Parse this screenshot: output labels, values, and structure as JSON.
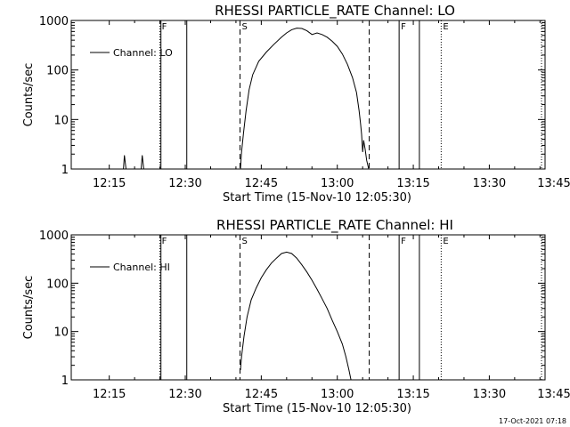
{
  "chart_data": [
    {
      "type": "line",
      "title": "RHESSI PARTICLE_RATE Channel: LO",
      "xlabel": "Start Time (15-Nov-10 12:05:30)",
      "ylabel": "Counts/sec",
      "yscale": "log",
      "ylim": [
        1,
        1000
      ],
      "xlim_minutes": [
        7.5,
        101.0
      ],
      "x_ticks": [
        {
          "t": 15,
          "label": "12:15"
        },
        {
          "t": 30,
          "label": "12:30"
        },
        {
          "t": 45,
          "label": "12:45"
        },
        {
          "t": 60,
          "label": "13:00"
        },
        {
          "t": 75,
          "label": "13:15"
        },
        {
          "t": 90,
          "label": "13:30"
        },
        {
          "t": 105,
          "label": "13:45"
        }
      ],
      "y_ticks": [
        {
          "v": 1,
          "label": "1"
        },
        {
          "v": 10,
          "label": "10"
        },
        {
          "v": 100,
          "label": "100"
        },
        {
          "v": 1000,
          "label": "1000"
        }
      ],
      "legend": "top-left",
      "series": [
        {
          "name": "Channel: LO",
          "x_unit": "minutes after 12:00",
          "points": [
            [
              17.8,
              1
            ],
            [
              18.0,
              1.9
            ],
            [
              18.3,
              1
            ],
            [
              21.3,
              1
            ],
            [
              21.5,
              1.9
            ],
            [
              21.8,
              1
            ],
            [
              40.9,
              1
            ],
            [
              41.1,
              2.2
            ],
            [
              41.5,
              5.5
            ],
            [
              42.0,
              15
            ],
            [
              42.6,
              40
            ],
            [
              43.3,
              80
            ],
            [
              44.5,
              150
            ],
            [
              46,
              230
            ],
            [
              47.5,
              330
            ],
            [
              49,
              460
            ],
            [
              50,
              560
            ],
            [
              51,
              650
            ],
            [
              52,
              700
            ],
            [
              53,
              690
            ],
            [
              54,
              620
            ],
            [
              55,
              520
            ],
            [
              56,
              560
            ],
            [
              57,
              520
            ],
            [
              58,
              460
            ],
            [
              59,
              380
            ],
            [
              60,
              300
            ],
            [
              61,
              210
            ],
            [
              62,
              130
            ],
            [
              63,
              70
            ],
            [
              63.8,
              35
            ],
            [
              64.3,
              15
            ],
            [
              64.6,
              8
            ],
            [
              64.8,
              5
            ],
            [
              65.0,
              2.2
            ],
            [
              65.2,
              3.8
            ],
            [
              65.5,
              2.5
            ],
            [
              65.8,
              1.5
            ],
            [
              66.2,
              1
            ]
          ]
        }
      ],
      "markers": [
        {
          "t": 25.0,
          "style": "dotted",
          "label": "F"
        },
        {
          "t": 25.2,
          "style": "solid",
          "label": ""
        },
        {
          "t": 30.3,
          "style": "solid",
          "label": ""
        },
        {
          "t": 40.8,
          "style": "dashed",
          "label": "S"
        },
        {
          "t": 66.3,
          "style": "dashed",
          "label": ""
        },
        {
          "t": 72.2,
          "style": "solid",
          "label": "F"
        },
        {
          "t": 76.2,
          "style": "solid",
          "label": ""
        },
        {
          "t": 80.5,
          "style": "dotted",
          "label": "E"
        },
        {
          "t": 100.3,
          "style": "dotted",
          "label": ""
        }
      ]
    },
    {
      "type": "line",
      "title": "RHESSI PARTICLE_RATE Channel: HI",
      "xlabel": "Start Time (15-Nov-10 12:05:30)",
      "ylabel": "Counts/sec",
      "yscale": "log",
      "ylim": [
        1,
        1000
      ],
      "xlim_minutes": [
        7.5,
        101.0
      ],
      "x_ticks": [
        {
          "t": 15,
          "label": "12:15"
        },
        {
          "t": 30,
          "label": "12:30"
        },
        {
          "t": 45,
          "label": "12:45"
        },
        {
          "t": 60,
          "label": "13:00"
        },
        {
          "t": 75,
          "label": "13:15"
        },
        {
          "t": 90,
          "label": "13:30"
        },
        {
          "t": 105,
          "label": "13:45"
        }
      ],
      "y_ticks": [
        {
          "v": 1,
          "label": "1"
        },
        {
          "v": 10,
          "label": "10"
        },
        {
          "v": 100,
          "label": "100"
        },
        {
          "v": 1000,
          "label": "1000"
        }
      ],
      "legend": "top-left",
      "series": [
        {
          "name": "Channel: HI",
          "x_unit": "minutes after 12:00",
          "points": [
            [
              40.9,
              1.6
            ],
            [
              41.1,
              3
            ],
            [
              41.6,
              8
            ],
            [
              42.2,
              20
            ],
            [
              43,
              45
            ],
            [
              44,
              80
            ],
            [
              45,
              130
            ],
            [
              46,
              190
            ],
            [
              47,
              260
            ],
            [
              48,
              330
            ],
            [
              49,
              410
            ],
            [
              50,
              440
            ],
            [
              51,
              410
            ],
            [
              52,
              330
            ],
            [
              53,
              240
            ],
            [
              54,
              170
            ],
            [
              55,
              115
            ],
            [
              56,
              75
            ],
            [
              57,
              48
            ],
            [
              58,
              30
            ],
            [
              59,
              17
            ],
            [
              60,
              10
            ],
            [
              61,
              5.5
            ],
            [
              61.7,
              3
            ],
            [
              62.3,
              1.6
            ],
            [
              62.7,
              1
            ]
          ]
        }
      ],
      "markers": [
        {
          "t": 25.0,
          "style": "dotted",
          "label": "F"
        },
        {
          "t": 25.2,
          "style": "solid",
          "label": ""
        },
        {
          "t": 30.3,
          "style": "solid",
          "label": ""
        },
        {
          "t": 40.8,
          "style": "dashed",
          "label": "S"
        },
        {
          "t": 66.3,
          "style": "dashed",
          "label": ""
        },
        {
          "t": 72.2,
          "style": "solid",
          "label": "F"
        },
        {
          "t": 76.2,
          "style": "solid",
          "label": ""
        },
        {
          "t": 80.5,
          "style": "dotted",
          "label": "E"
        },
        {
          "t": 100.3,
          "style": "dotted",
          "label": ""
        }
      ]
    }
  ],
  "footer": {
    "timestamp": "17-Oct-2021 07:18"
  }
}
